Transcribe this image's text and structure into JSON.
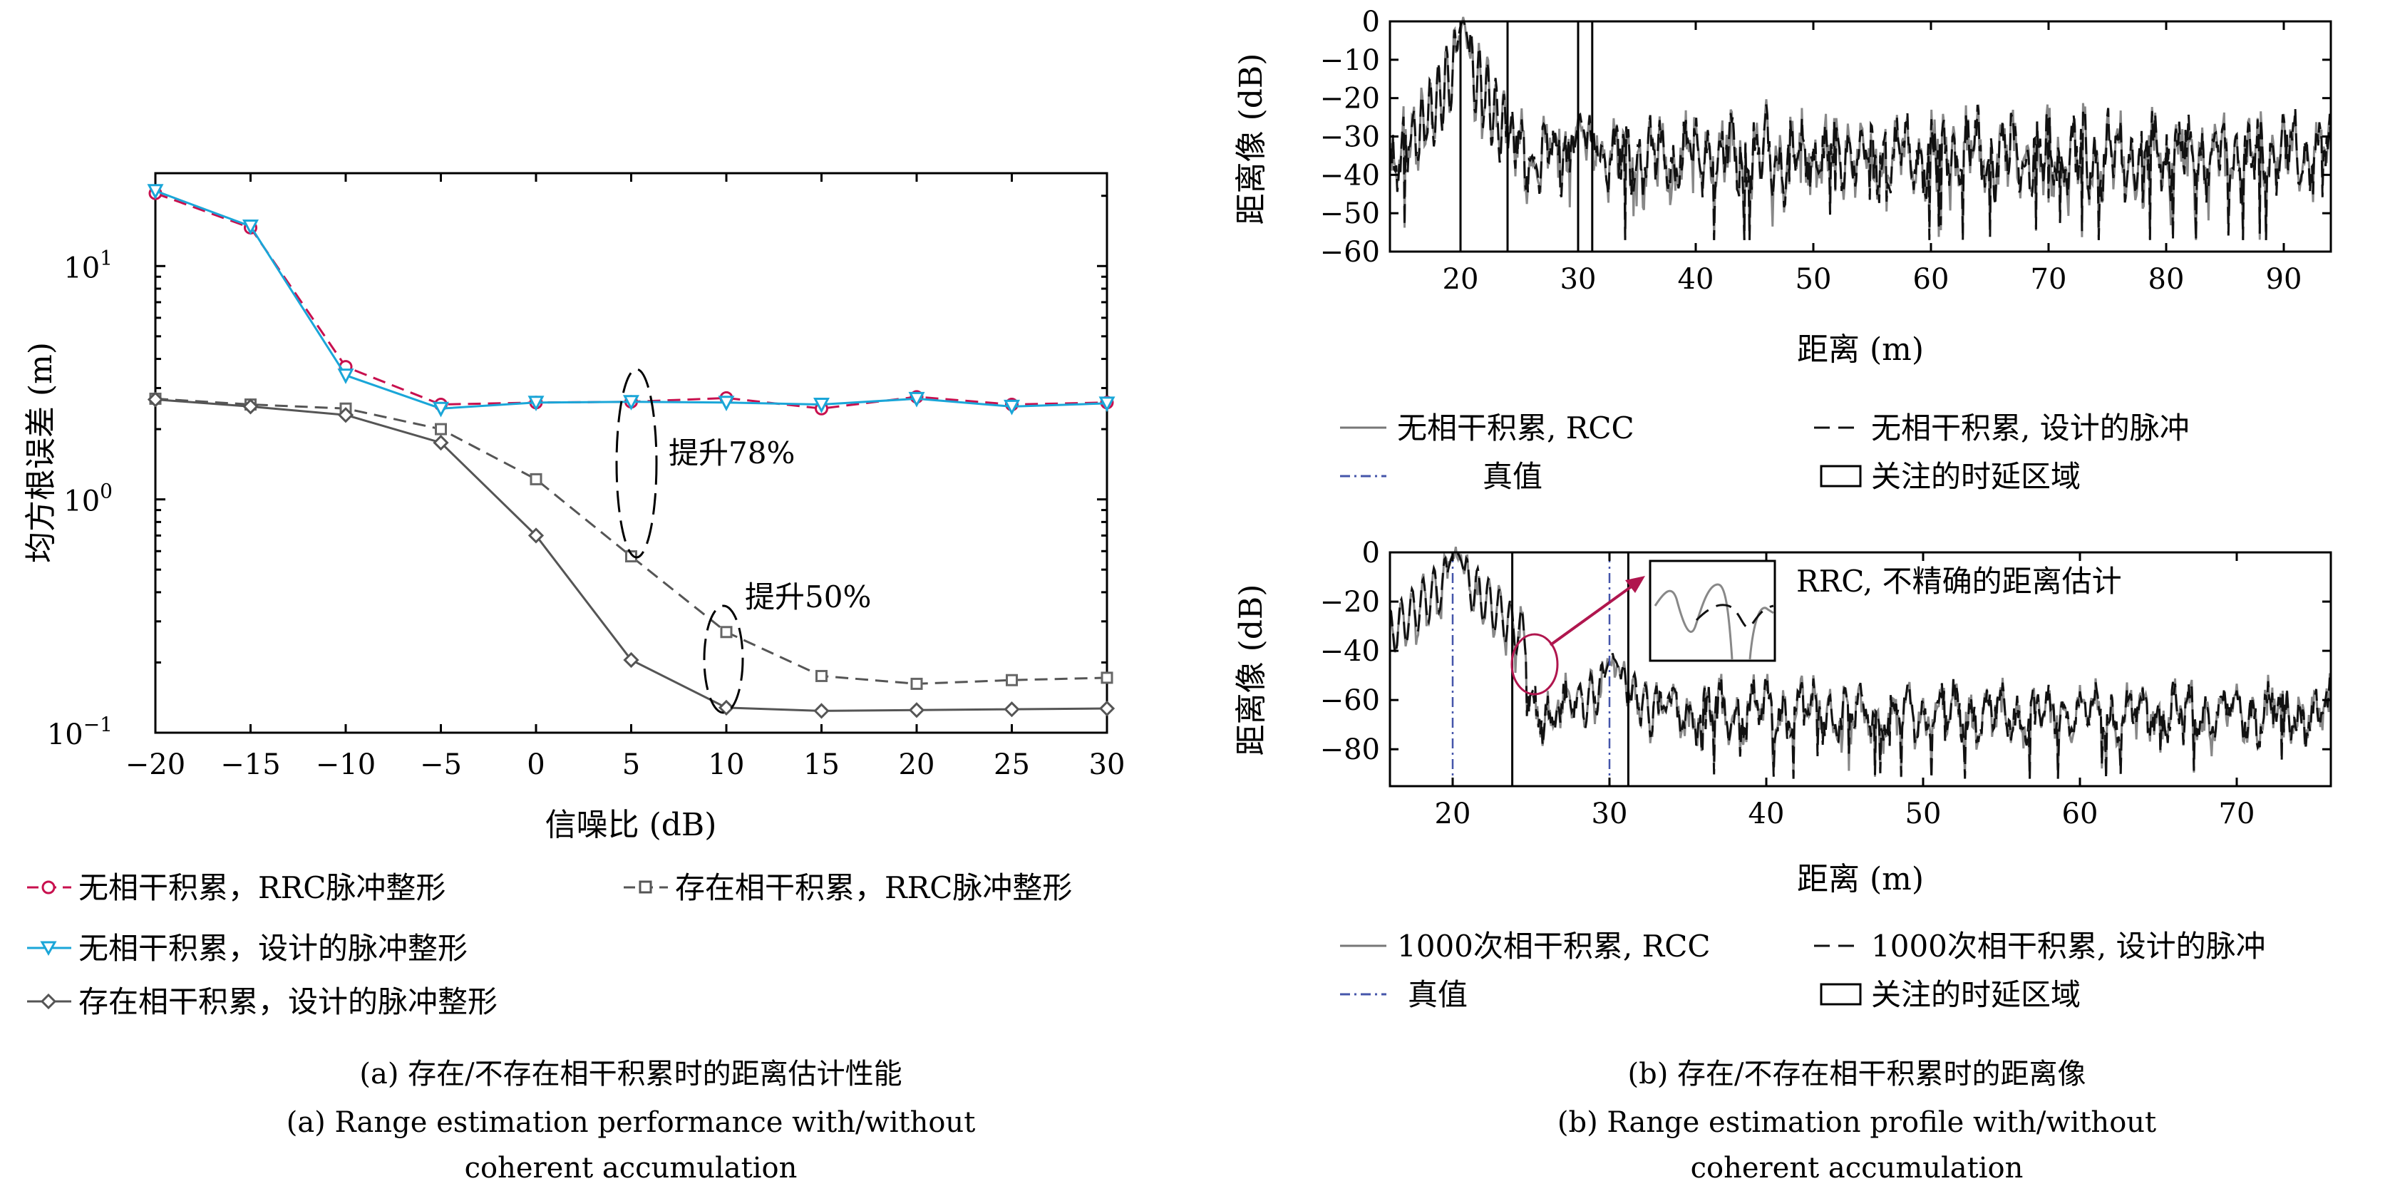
{
  "chart_data": [
    {
      "type": "line",
      "panel": "a",
      "xlabel": "信噪比 (dB)",
      "ylabel": "均方根误差 (m)",
      "xlim": [
        -20,
        30
      ],
      "ylim": [
        0.1,
        25
      ],
      "yscale": "log",
      "x_ticks": [
        -20,
        -15,
        -10,
        -5,
        0,
        5,
        10,
        15,
        20,
        25,
        30
      ],
      "x_tick_labels": [
        "−20",
        "−15",
        "−10",
        "−5",
        "0",
        "5",
        "10",
        "15",
        "20",
        "25",
        "30"
      ],
      "y_tick_labels": [
        {
          "base": "10",
          "exp": "1",
          "value": 10
        },
        {
          "base": "10",
          "exp": "0",
          "value": 1
        },
        {
          "base": "10",
          "exp": "−1",
          "value": 0.1
        }
      ],
      "x": [
        -20,
        -15,
        -10,
        -5,
        0,
        5,
        10,
        15,
        20,
        25,
        30
      ],
      "series": [
        {
          "name": "无相干积累，RRC脉冲整形",
          "color": "#c8104e",
          "dash": "dash",
          "marker": "circle",
          "values": [
            20.5,
            14.6,
            3.7,
            2.55,
            2.6,
            2.62,
            2.72,
            2.45,
            2.75,
            2.55,
            2.6
          ]
        },
        {
          "name": "存在相干积累，RRC脉冲整形",
          "color": "#555555",
          "dash": "dash",
          "marker": "square",
          "values": [
            2.7,
            2.55,
            2.45,
            2.0,
            1.22,
            0.57,
            0.27,
            0.175,
            0.162,
            0.168,
            0.172
          ]
        },
        {
          "name": "无相干积累，设计的脉冲整形",
          "color": "#1aa6d8",
          "dash": "solid",
          "marker": "triangle",
          "values": [
            21.0,
            14.8,
            3.4,
            2.45,
            2.6,
            2.62,
            2.6,
            2.55,
            2.7,
            2.5,
            2.58
          ]
        },
        {
          "name": "存在相干积累，设计的脉冲整形",
          "color": "#555555",
          "dash": "solid",
          "marker": "diamond",
          "values": [
            2.68,
            2.5,
            2.3,
            1.75,
            0.7,
            0.205,
            0.128,
            0.124,
            0.125,
            0.126,
            0.127
          ]
        }
      ],
      "annotations": [
        "提升78%",
        "提升50%"
      ],
      "legend_position": "bottom"
    },
    {
      "type": "line",
      "panel": "b-top",
      "xlabel": "距离 (m)",
      "ylabel": "距离像 (dB)",
      "xlim": [
        14,
        94
      ],
      "ylim": [
        -60,
        0
      ],
      "x_ticks": [
        20,
        30,
        40,
        50,
        60,
        70,
        80,
        90
      ],
      "y_ticks": [
        0,
        -10,
        -20,
        -30,
        -40,
        -50,
        -60
      ],
      "y_tick_labels": [
        "0",
        "−10",
        "−20",
        "−30",
        "−40",
        "−50",
        "−60"
      ],
      "series": [
        {
          "name": "无相干积累, RCC",
          "color": "#777777",
          "dash": "solid"
        },
        {
          "name": "无相干积累, 设计的脉冲",
          "color": "#111111",
          "dash": "dash"
        },
        {
          "name": "真值",
          "color": "#4455aa",
          "dash": "dashdot",
          "x": [
            20,
            30
          ]
        },
        {
          "name": "关注的时延区域",
          "kind": "rect",
          "x_ranges": [
            [
              20,
              24
            ],
            [
              30,
              31.2
            ]
          ]
        }
      ],
      "peaks": [
        {
          "x": 20.2,
          "y": 0
        },
        {
          "x": 30.2,
          "y": -26
        }
      ],
      "legend_position": "bottom"
    },
    {
      "type": "line",
      "panel": "b-bottom",
      "xlabel": "距离 (m)",
      "ylabel": "距离像 (dB)",
      "xlim": [
        16,
        76
      ],
      "ylim": [
        -95,
        0
      ],
      "x_ticks": [
        20,
        30,
        40,
        50,
        60,
        70
      ],
      "y_ticks": [
        0,
        -20,
        -40,
        -60,
        -80
      ],
      "y_tick_labels": [
        "0",
        "−20",
        "−40",
        "−60",
        "−80"
      ],
      "series": [
        {
          "name": "1000次相干积累, RCC",
          "color": "#777777",
          "dash": "solid"
        },
        {
          "name": "1000次相干积累, 设计的脉冲",
          "color": "#111111",
          "dash": "dash"
        },
        {
          "name": "真值",
          "color": "#4455aa",
          "dash": "dashdot",
          "x": [
            20,
            30
          ]
        },
        {
          "name": "关注的时延区域",
          "kind": "rect",
          "x_ranges": [
            [
              23.8,
              31.2
            ]
          ]
        }
      ],
      "peaks": [
        {
          "x": 20.2,
          "y": 0
        },
        {
          "x": 30.2,
          "y": -43
        }
      ],
      "annotations": [
        "RRC, 不精确的距离估计"
      ],
      "legend_position": "bottom"
    }
  ],
  "captions": {
    "a_zh": "(a) 存在/不存在相干积累时的距离估计性能",
    "a_en_1": "(a) Range estimation performance with/without",
    "a_en_2": "coherent accumulation",
    "b_zh": "(b) 存在/不存在相干积累时的距离像",
    "b_en_1": "(b) Range estimation profile with/without",
    "b_en_2": "coherent accumulation"
  }
}
